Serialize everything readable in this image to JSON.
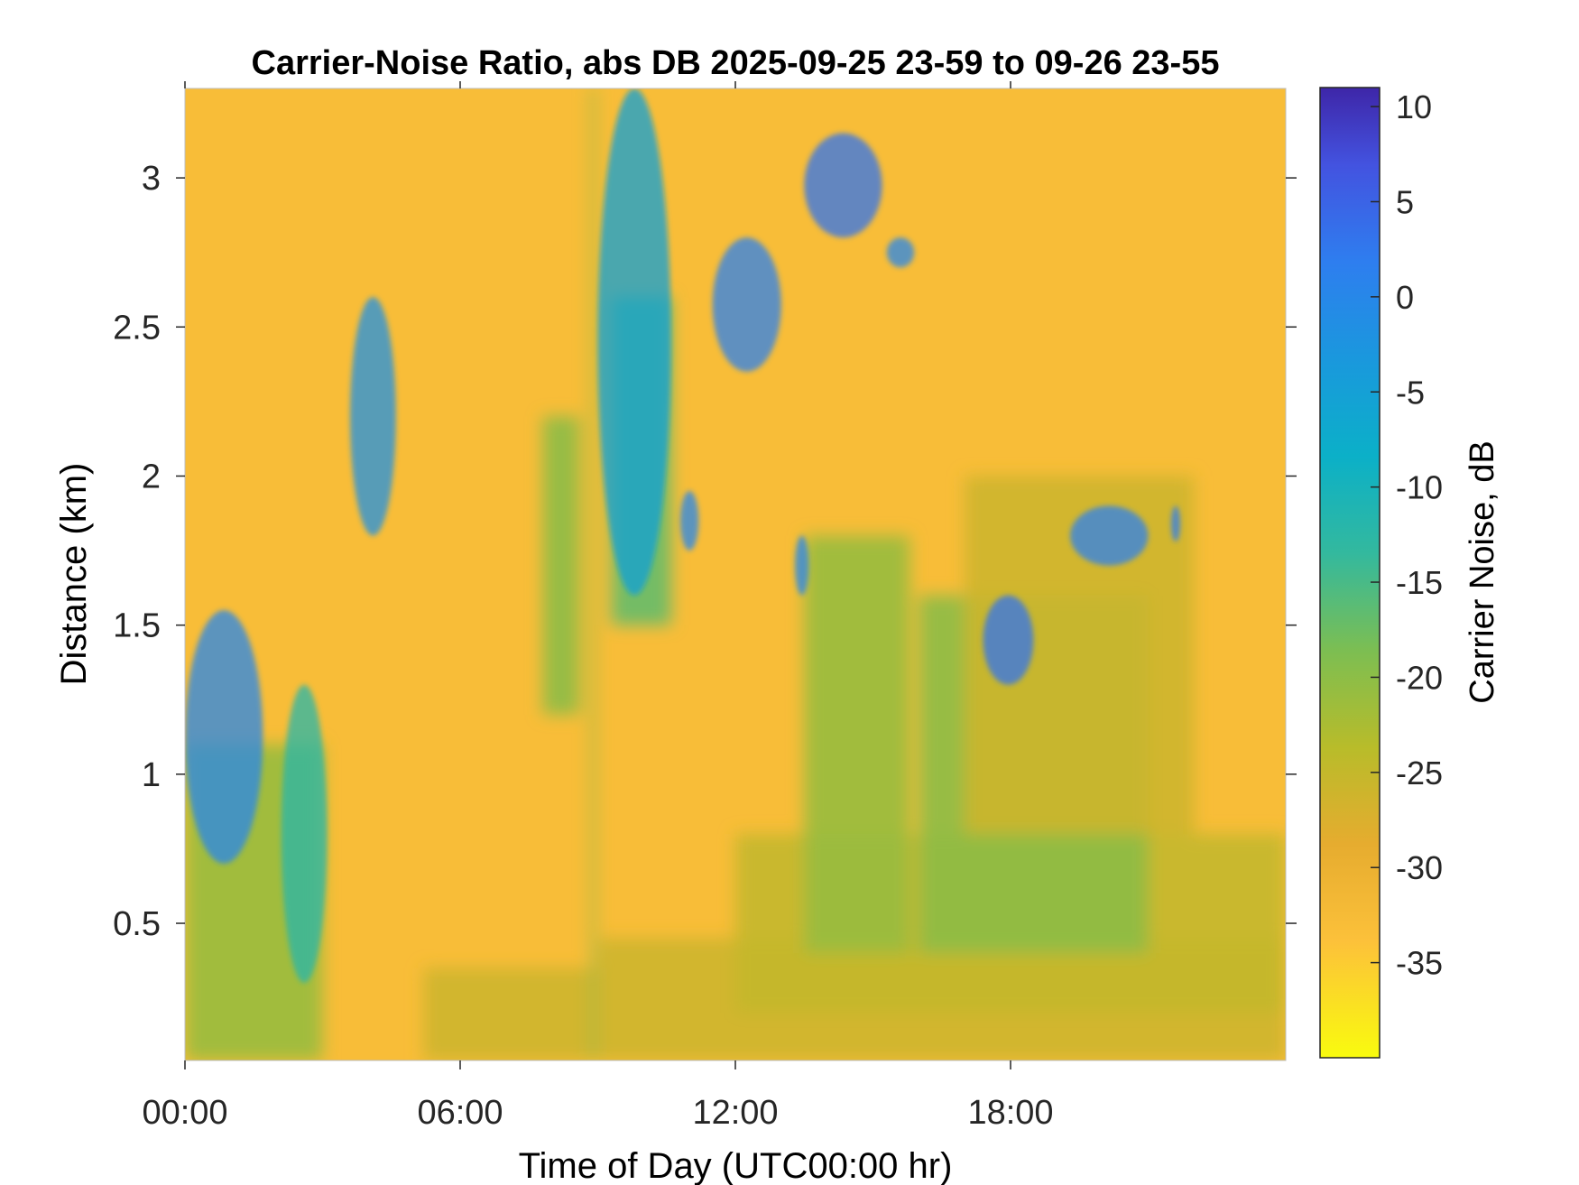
{
  "chart_data": {
    "type": "heatmap",
    "title": "Carrier-Noise Ratio, abs DB 2025-09-25 23-59 to 09-26 23-55",
    "xlabel": "Time of Day (UTC00:00 hr)",
    "ylabel": "Distance (km)",
    "x_unit": "hours",
    "xlim": [
      0,
      24
    ],
    "ylim": [
      0.04,
      3.3
    ],
    "x_ticks": [
      {
        "value": 0,
        "label": "00:00"
      },
      {
        "value": 6,
        "label": "06:00"
      },
      {
        "value": 12,
        "label": "12:00"
      },
      {
        "value": 18,
        "label": "18:00"
      }
    ],
    "y_ticks": [
      {
        "value": 0.5,
        "label": "0.5"
      },
      {
        "value": 1,
        "label": "1"
      },
      {
        "value": 1.5,
        "label": "1.5"
      },
      {
        "value": 2,
        "label": "2"
      },
      {
        "value": 2.5,
        "label": "2.5"
      },
      {
        "value": 3,
        "label": "3"
      }
    ],
    "colorbar": {
      "label": "Carrier Noise, dB",
      "range": [
        -40,
        11
      ],
      "ticks": [
        {
          "value": 10,
          "label": "10"
        },
        {
          "value": 5,
          "label": "5"
        },
        {
          "value": 0,
          "label": "0"
        },
        {
          "value": -5,
          "label": "-5"
        },
        {
          "value": -10,
          "label": "-10"
        },
        {
          "value": -15,
          "label": "-15"
        },
        {
          "value": -20,
          "label": "-20"
        },
        {
          "value": -25,
          "label": "-25"
        },
        {
          "value": -30,
          "label": "-30"
        },
        {
          "value": -35,
          "label": "-35"
        }
      ],
      "colormap": "parula"
    },
    "background_value_db": -33,
    "regions": [
      {
        "x": [
          0.0,
          3.0
        ],
        "y": [
          0.04,
          1.1
        ],
        "value_db": -21
      },
      {
        "x": [
          5.2,
          9.0
        ],
        "y": [
          0.04,
          0.35
        ],
        "value_db": -26
      },
      {
        "x": [
          9.0,
          24.0
        ],
        "y": [
          0.04,
          0.45
        ],
        "value_db": -26
      },
      {
        "x": [
          12.0,
          24.0
        ],
        "y": [
          0.2,
          0.8
        ],
        "value_db": -25
      },
      {
        "x": [
          13.5,
          15.8
        ],
        "y": [
          0.4,
          1.8
        ],
        "value_db": -21
      },
      {
        "x": [
          16.0,
          21.0
        ],
        "y": [
          0.4,
          1.6
        ],
        "value_db": -20
      },
      {
        "x": [
          17.0,
          22.0
        ],
        "y": [
          0.8,
          2.0
        ],
        "value_db": -26
      },
      {
        "x": [
          7.8,
          8.6
        ],
        "y": [
          1.2,
          2.2
        ],
        "value_db": -20
      },
      {
        "x": [
          9.3,
          10.6
        ],
        "y": [
          1.5,
          2.6
        ],
        "value_db": -17
      },
      {
        "x": [
          8.85,
          8.95
        ],
        "y": [
          0.04,
          3.3
        ],
        "value_db": -20
      }
    ],
    "echoes": [
      {
        "x": [
          0.0,
          1.7
        ],
        "y": [
          0.7,
          1.55
        ],
        "value_db": 0
      },
      {
        "x": [
          2.1,
          3.1
        ],
        "y": [
          0.3,
          1.3
        ],
        "value_db": -12
      },
      {
        "x": [
          3.6,
          4.6
        ],
        "y": [
          1.8,
          2.6
        ],
        "value_db": -2
      },
      {
        "x": [
          9.0,
          10.6
        ],
        "y": [
          1.6,
          3.3
        ],
        "value_db": -5
      },
      {
        "x": [
          10.8,
          11.2
        ],
        "y": [
          1.75,
          1.95
        ],
        "value_db": 0
      },
      {
        "x": [
          11.5,
          13.0
        ],
        "y": [
          2.35,
          2.8
        ],
        "value_db": 1
      },
      {
        "x": [
          13.3,
          13.6
        ],
        "y": [
          1.6,
          1.8
        ],
        "value_db": 0
      },
      {
        "x": [
          13.5,
          15.2
        ],
        "y": [
          2.8,
          3.15
        ],
        "value_db": 3
      },
      {
        "x": [
          15.3,
          15.9
        ],
        "y": [
          2.7,
          2.8
        ],
        "value_db": 0
      },
      {
        "x": [
          17.4,
          18.5
        ],
        "y": [
          1.3,
          1.6
        ],
        "value_db": 3
      },
      {
        "x": [
          19.3,
          21.0
        ],
        "y": [
          1.7,
          1.9
        ],
        "value_db": 1
      },
      {
        "x": [
          21.5,
          21.7
        ],
        "y": [
          1.78,
          1.9
        ],
        "value_db": 2
      }
    ]
  }
}
